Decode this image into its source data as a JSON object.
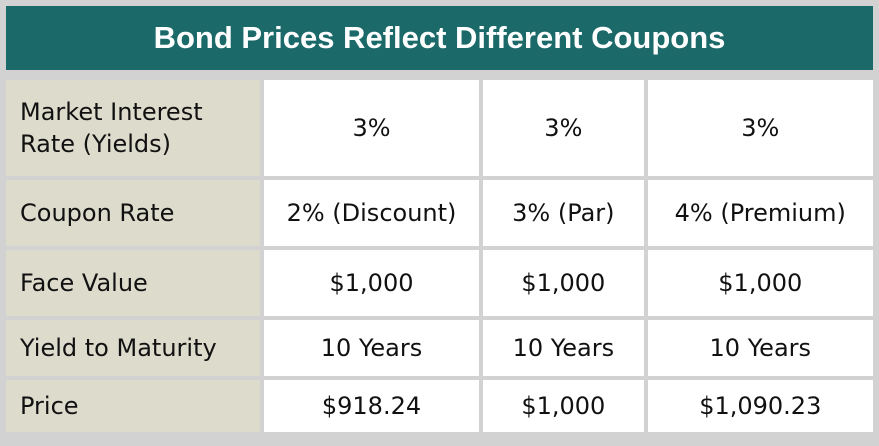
{
  "title": "Bond Prices Reflect Different Coupons",
  "rows": [
    {
      "label": "Market Interest Rate (Yields)",
      "values": [
        "3%",
        "3%",
        "3%"
      ]
    },
    {
      "label": "Coupon Rate",
      "values": [
        "2% (Discount)",
        "3% (Par)",
        "4% (Premium)"
      ]
    },
    {
      "label": "Face Value",
      "values": [
        "$1,000",
        "$1,000",
        "$1,000"
      ]
    },
    {
      "label": "Yield to Maturity",
      "values": [
        "10 Years",
        "10 Years",
        "10 Years"
      ]
    },
    {
      "label": "Price",
      "values": [
        "$918.24",
        "$1,000",
        "$1,090.23"
      ]
    }
  ]
}
